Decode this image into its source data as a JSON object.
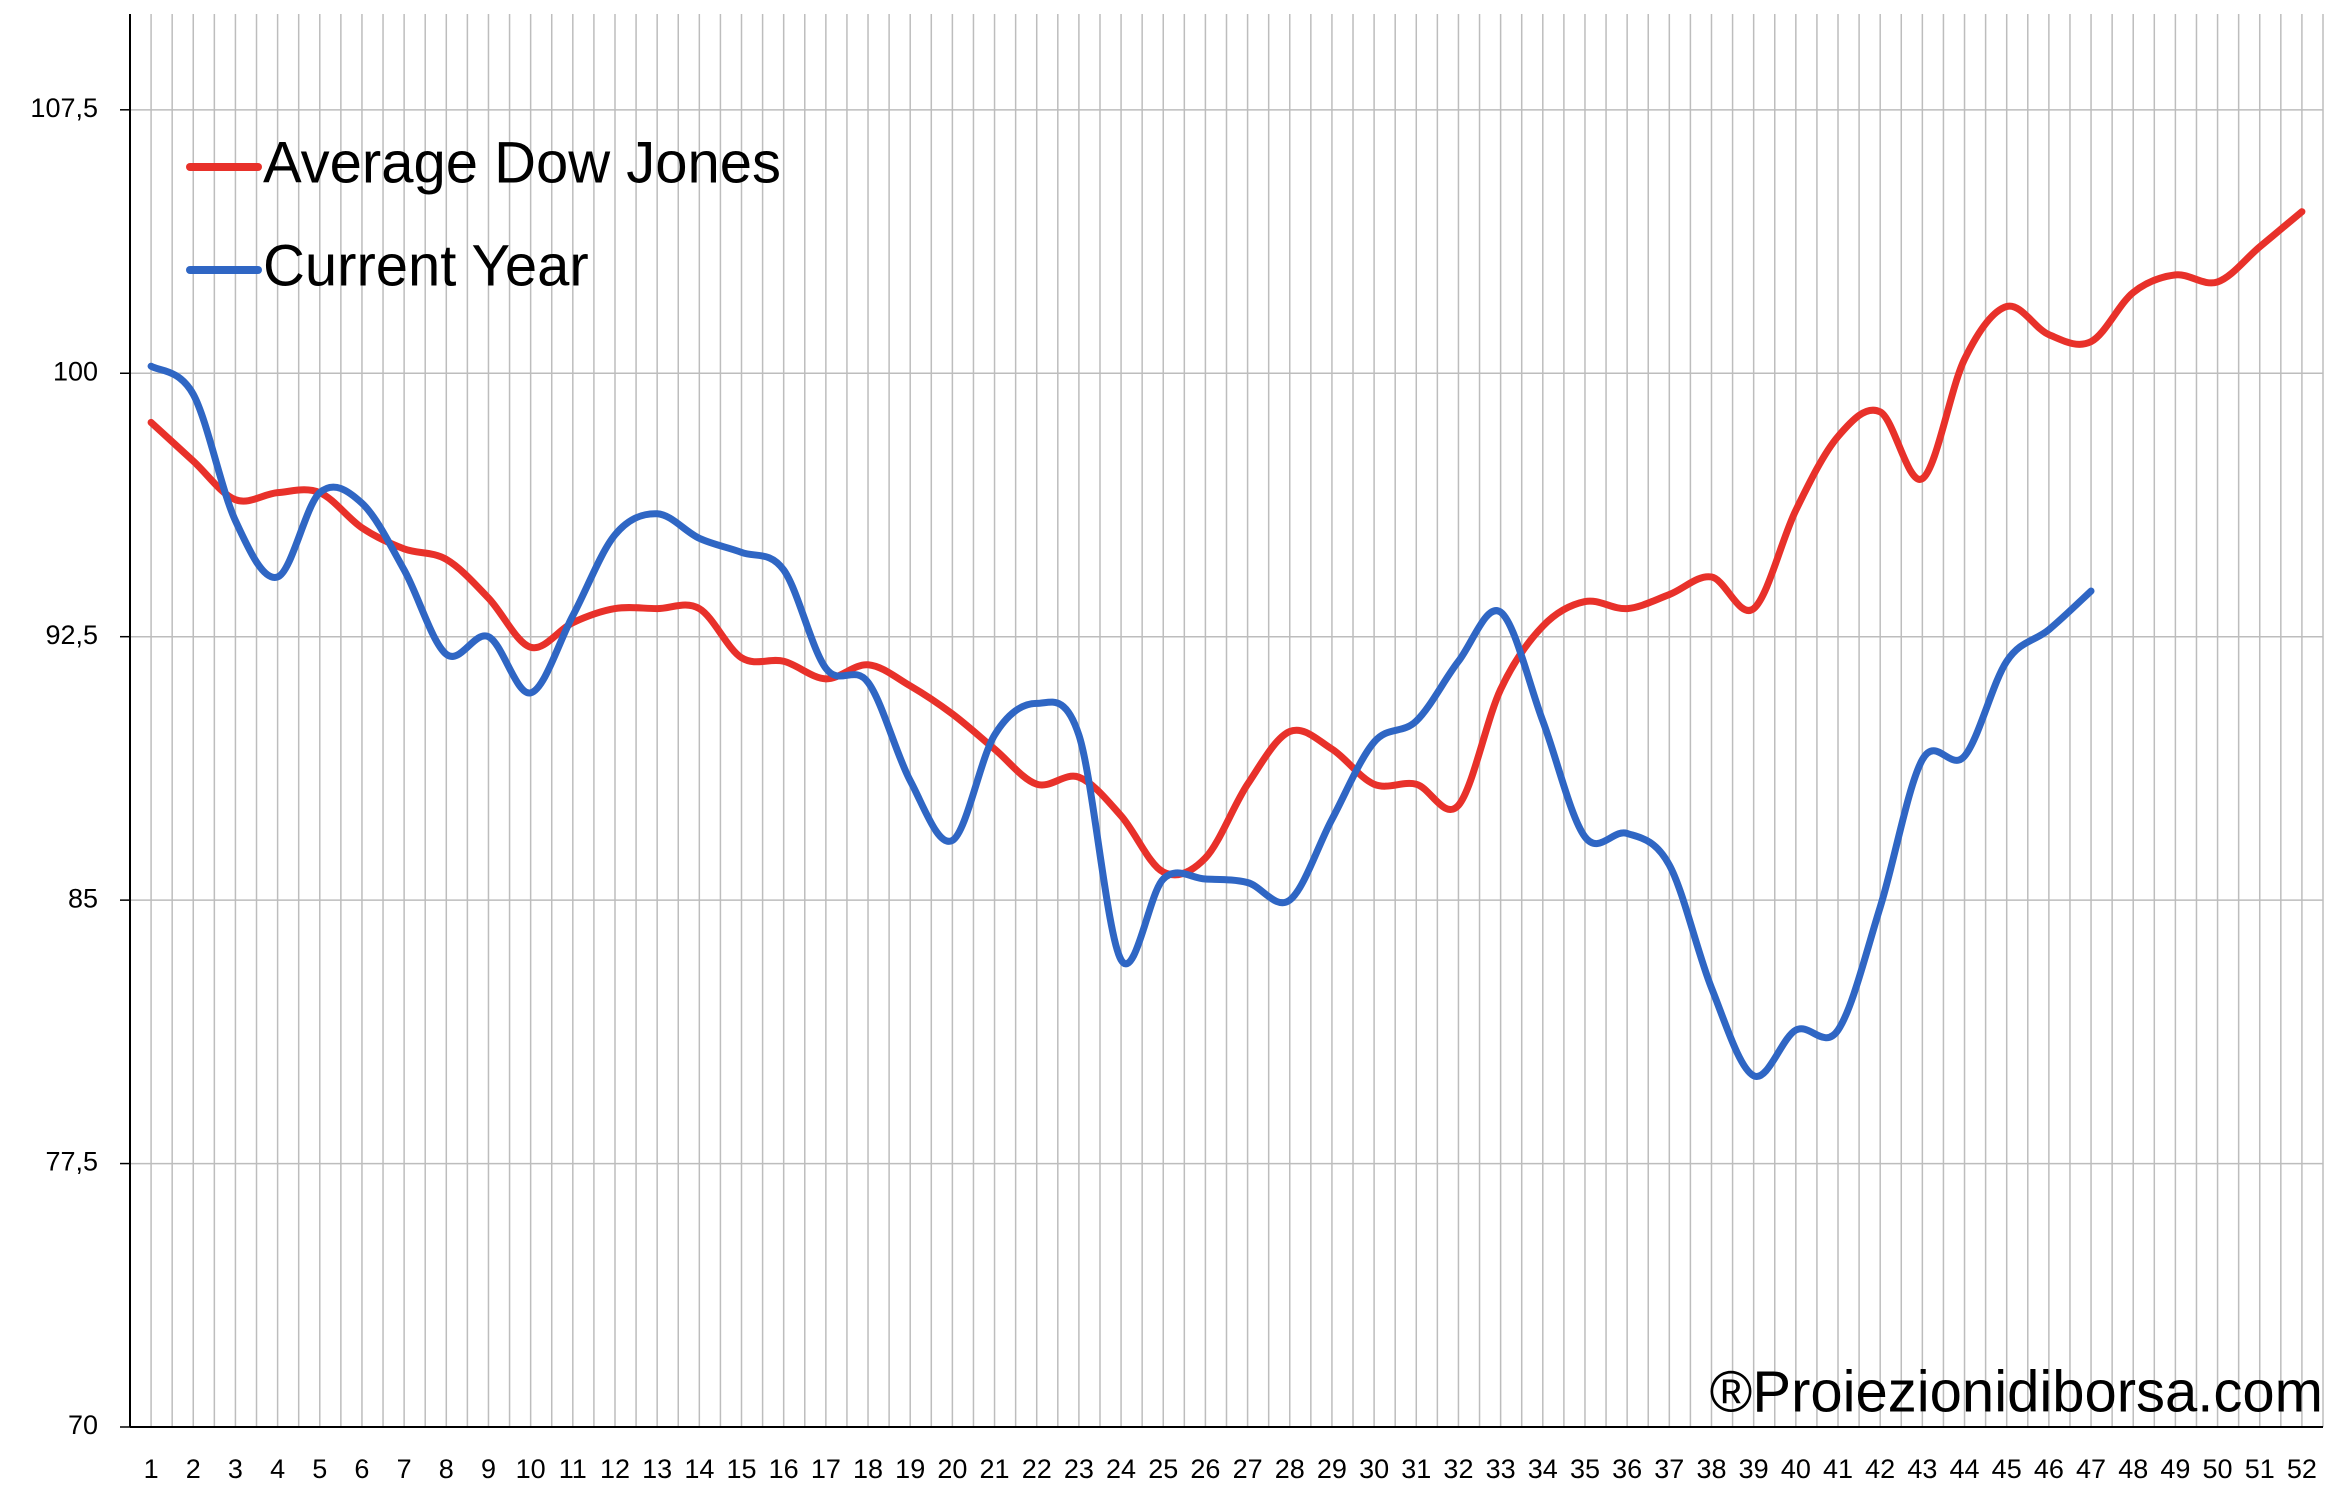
{
  "chart_data": {
    "type": "line",
    "categories": [
      "1",
      "2",
      "3",
      "4",
      "5",
      "6",
      "7",
      "8",
      "9",
      "10",
      "11",
      "12",
      "13",
      "14",
      "15",
      "16",
      "17",
      "18",
      "19",
      "20",
      "21",
      "22",
      "23",
      "24",
      "25",
      "26",
      "27",
      "28",
      "29",
      "30",
      "31",
      "32",
      "33",
      "34",
      "35",
      "36",
      "37",
      "38",
      "39",
      "40",
      "41",
      "42",
      "43",
      "44",
      "45",
      "46",
      "47",
      "48",
      "49",
      "50",
      "51",
      "52"
    ],
    "series": [
      {
        "name": "Average Dow Jones",
        "color": "#e8312a",
        "values": [
          98.6,
          97.5,
          96.4,
          96.6,
          96.6,
          95.6,
          95.0,
          94.7,
          93.6,
          92.2,
          92.9,
          93.3,
          93.3,
          93.3,
          91.9,
          91.8,
          91.3,
          91.7,
          91.1,
          90.3,
          89.3,
          88.3,
          88.5,
          87.4,
          85.8,
          86.2,
          88.3,
          89.8,
          89.3,
          88.3,
          88.3,
          87.7,
          91.0,
          92.8,
          93.5,
          93.3,
          93.7,
          94.2,
          93.3,
          96.1,
          98.2,
          98.9,
          97.0,
          100.4,
          101.9,
          101.1,
          100.9,
          102.3,
          102.8,
          102.6,
          103.6,
          104.6
        ]
      },
      {
        "name": "Current Year",
        "color": "#2f66c4",
        "values": [
          100.2,
          99.4,
          95.8,
          94.2,
          96.6,
          96.3,
          94.4,
          92.0,
          92.5,
          90.9,
          93.1,
          95.4,
          96.0,
          95.3,
          94.9,
          94.4,
          91.6,
          91.2,
          88.4,
          86.7,
          89.7,
          90.6,
          89.7,
          83.3,
          85.6,
          85.6,
          85.5,
          85.0,
          87.3,
          89.5,
          90.1,
          91.8,
          93.2,
          90.1,
          86.8,
          86.9,
          86.0,
          82.5,
          80.0,
          81.3,
          81.3,
          84.8,
          89.0,
          89.1,
          91.8,
          92.7,
          93.8,
          null,
          null,
          null,
          null,
          null
        ]
      }
    ],
    "ylim": [
      70,
      110
    ],
    "yticks": [
      70,
      {
        "value": 77.5,
        "label": "77,5"
      },
      85,
      {
        "value": 92.5,
        "label": "92,5"
      },
      100,
      {
        "value": 107.5,
        "label": "107,5"
      }
    ],
    "grid": true,
    "legend": "upper left",
    "annotation": "®Proiezionidiborsa.com"
  }
}
